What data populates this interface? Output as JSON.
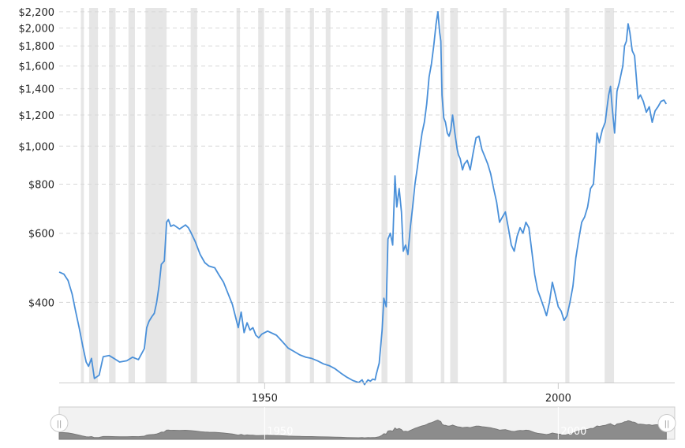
{
  "colors": {
    "line": "#4a90d9",
    "recession": "#e6e6e6",
    "grid": "#d8d8d8",
    "navigator_fill": "#8c8c8c",
    "navigator_bg": "#f2f2f2"
  },
  "chart_data": {
    "type": "line",
    "title": "",
    "xlabel": "",
    "ylabel": "",
    "y_scale": "log",
    "xlim": [
      1915,
      2018.5
    ],
    "ylim": [
      250,
      2250
    ],
    "grid": true,
    "legend": "none",
    "x_ticks": [
      {
        "value": 1950,
        "label": "1950"
      },
      {
        "value": 2000,
        "label": "2000"
      }
    ],
    "y_ticks": [
      {
        "value": 400,
        "label": "$400"
      },
      {
        "value": 600,
        "label": "$600"
      },
      {
        "value": 800,
        "label": "$800"
      },
      {
        "value": 1000,
        "label": "$1,000"
      },
      {
        "value": 1200,
        "label": "$1,200"
      },
      {
        "value": 1400,
        "label": "$1,400"
      },
      {
        "value": 1600,
        "label": "$1,600"
      },
      {
        "value": 1800,
        "label": "$1,800"
      },
      {
        "value": 2000,
        "label": "$2,000"
      },
      {
        "value": 2200,
        "label": "$2,200"
      }
    ],
    "recession_bands": [
      [
        1918.7,
        1919.2
      ],
      [
        1920.1,
        1921.6
      ],
      [
        1923.5,
        1924.6
      ],
      [
        1926.8,
        1927.9
      ],
      [
        1929.7,
        1933.3
      ],
      [
        1937.4,
        1938.5
      ],
      [
        1945.2,
        1945.8
      ],
      [
        1948.9,
        1949.9
      ],
      [
        1953.5,
        1954.4
      ],
      [
        1957.7,
        1958.4
      ],
      [
        1960.4,
        1961.2
      ],
      [
        1969.9,
        1970.9
      ],
      [
        1973.9,
        1975.2
      ],
      [
        1980.0,
        1980.6
      ],
      [
        1981.6,
        1982.9
      ],
      [
        1990.6,
        1991.2
      ],
      [
        2001.2,
        2001.9
      ],
      [
        2007.9,
        2009.5
      ]
    ],
    "series": [
      {
        "x": [
          1915.0,
          1915.8,
          1916.5,
          1917.2,
          1917.8,
          1918.4,
          1919.0,
          1919.6,
          1920.0,
          1920.5,
          1921.0,
          1921.8,
          1922.5,
          1923.5,
          1924.5,
          1925.3,
          1926.5,
          1927.5,
          1928.5,
          1929.5,
          1929.9,
          1930.3,
          1930.8,
          1931.2,
          1931.6,
          1932.0,
          1932.4,
          1932.9,
          1933.3,
          1933.6,
          1934.0,
          1934.5,
          1935.5,
          1936.5,
          1937.0,
          1937.5,
          1938.2,
          1939.0,
          1939.8,
          1940.5,
          1941.5,
          1942.2,
          1943.0,
          1944.5,
          1945.5,
          1946.0,
          1946.5,
          1947.0,
          1947.5,
          1948.0,
          1948.5,
          1949.0,
          1949.5,
          1950.5,
          1952.0,
          1953.0,
          1954.0,
          1955.0,
          1956.0,
          1957.0,
          1958.0,
          1959.0,
          1960.0,
          1961.0,
          1962.0,
          1963.0,
          1964.0,
          1965.0,
          1966.0,
          1966.6,
          1967.0,
          1967.6,
          1968.0,
          1968.4,
          1968.8,
          1969.0,
          1969.5,
          1970.0,
          1970.3,
          1970.7,
          1971.0,
          1971.4,
          1971.8,
          1972.2,
          1972.5,
          1972.9,
          1973.3,
          1973.6,
          1974.0,
          1974.4,
          1974.8,
          1975.2,
          1975.6,
          1976.0,
          1976.4,
          1976.8,
          1977.2,
          1977.6,
          1978.0,
          1978.4,
          1978.8,
          1979.2,
          1979.5,
          1979.8,
          1980.0,
          1980.2,
          1980.5,
          1980.8,
          1981.1,
          1981.4,
          1981.7,
          1982.0,
          1982.4,
          1982.8,
          1983.0,
          1983.3,
          1983.7,
          1984.0,
          1984.5,
          1985.0,
          1985.5,
          1986.0,
          1986.5,
          1987.0,
          1987.5,
          1988.0,
          1988.5,
          1989.0,
          1989.5,
          1990.0,
          1990.5,
          1991.0,
          1991.5,
          1992.0,
          1992.5,
          1993.0,
          1993.5,
          1994.0,
          1994.5,
          1995.0,
          1995.5,
          1996.0,
          1996.5,
          1997.0,
          1997.5,
          1998.0,
          1998.5,
          1999.0,
          1999.5,
          2000.0,
          2000.5,
          2001.0,
          2001.5,
          2002.0,
          2002.5,
          2003.0,
          2003.5,
          2004.0,
          2004.5,
          2005.0,
          2005.5,
          2006.0,
          2006.3,
          2006.6,
          2007.0,
          2007.5,
          2008.0,
          2008.3,
          2008.6,
          2008.9,
          2009.2,
          2009.6,
          2010.0,
          2010.4,
          2010.8,
          2011.0,
          2011.3,
          2011.6,
          2011.9,
          2012.2,
          2012.6,
          2013.0,
          2013.3,
          2013.6,
          2014.0,
          2014.5,
          2015.0,
          2015.5,
          2016.0,
          2016.5,
          2017.0,
          2017.5,
          2018.0,
          2018.4
        ],
        "y": [
          478,
          472,
          455,
          420,
          380,
          345,
          310,
          282,
          275,
          288,
          256,
          261,
          291,
          293,
          287,
          282,
          284,
          290,
          286,
          305,
          345,
          358,
          368,
          375,
          400,
          440,
          500,
          510,
          640,
          650,
          625,
          630,
          615,
          630,
          620,
          600,
          570,
          530,
          505,
          495,
          490,
          470,
          450,
          395,
          345,
          378,
          335,
          355,
          340,
          345,
          330,
          325,
          332,
          338,
          330,
          318,
          306,
          300,
          294,
          290,
          288,
          284,
          279,
          276,
          271,
          264,
          258,
          253,
          250,
          254,
          247,
          254,
          252,
          255,
          254,
          262,
          280,
          340,
          410,
          390,
          580,
          600,
          560,
          840,
          700,
          780,
          680,
          540,
          560,
          530,
          620,
          700,
          800,
          880,
          980,
          1080,
          1150,
          1280,
          1500,
          1620,
          1800,
          2050,
          2200,
          1950,
          1850,
          1350,
          1180,
          1150,
          1080,
          1060,
          1100,
          1200,
          1080,
          980,
          950,
          930,
          870,
          900,
          920,
          870,
          960,
          1050,
          1060,
          980,
          940,
          900,
          850,
          780,
          720,
          640,
          660,
          680,
          620,
          560,
          540,
          590,
          620,
          600,
          640,
          620,
          540,
          470,
          430,
          410,
          390,
          370,
          400,
          450,
          420,
          390,
          380,
          360,
          370,
          400,
          440,
          520,
          580,
          640,
          660,
          700,
          780,
          800,
          920,
          1080,
          1020,
          1100,
          1150,
          1250,
          1350,
          1420,
          1250,
          1080,
          1380,
          1450,
          1550,
          1600,
          1800,
          1850,
          2050,
          1950,
          1750,
          1700,
          1500,
          1320,
          1350,
          1300,
          1220,
          1260,
          1150,
          1230,
          1260,
          1300,
          1310,
          1280
        ]
      }
    ]
  },
  "navigator": {
    "labels": [
      "1950",
      "2000"
    ],
    "handle_glyph": "||"
  }
}
